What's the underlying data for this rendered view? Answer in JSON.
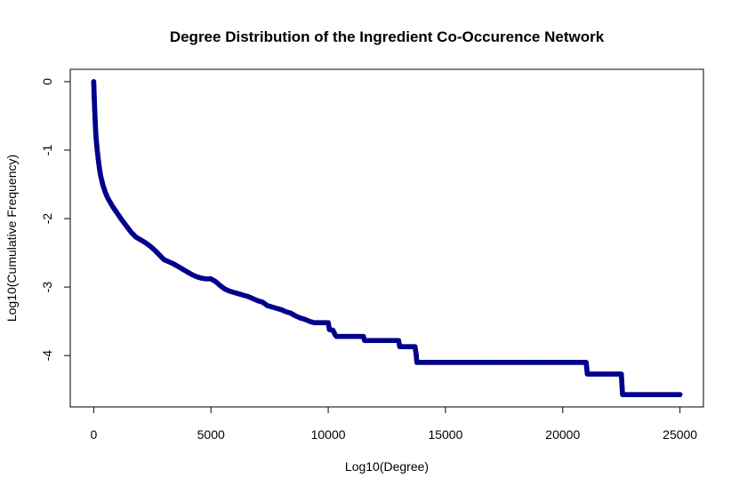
{
  "chart_data": {
    "type": "scatter",
    "title": "Degree Distribution of the Ingredient Co-Occurence Network",
    "xlabel": "Log10(Degree)",
    "ylabel": "Log10(Cumulative Frequency)",
    "xlim": [
      -1000,
      26000
    ],
    "ylim": [
      -4.75,
      0.18
    ],
    "xticks": [
      0,
      5000,
      10000,
      15000,
      20000,
      25000
    ],
    "yticks": [
      0,
      -1,
      -2,
      -3,
      -4
    ],
    "xtick_labels": [
      "0",
      "5000",
      "10000",
      "15000",
      "20000",
      "25000"
    ],
    "ytick_labels": [
      "0",
      "-1",
      "-2",
      "-3",
      "-4"
    ],
    "grid": false,
    "legend": "none",
    "point_color": "#00008B",
    "series": [
      {
        "x": [
          0,
          20,
          40,
          60,
          80,
          100,
          150,
          200,
          250,
          300,
          400,
          500,
          600,
          700,
          800,
          1000,
          1200,
          1400,
          1600,
          1800,
          2000,
          2200,
          2400,
          2600,
          2800,
          3000,
          3200,
          3400,
          3600,
          3800,
          4000,
          4200,
          4400,
          4600,
          4800,
          5000,
          5200,
          5400,
          5600,
          5800,
          6000,
          6200,
          6400,
          6600,
          6800,
          7000,
          7200,
          7400,
          7600,
          7800,
          8000,
          8200,
          8400,
          8600,
          8800,
          9000,
          9200,
          9400,
          9600,
          9800,
          10000,
          10050,
          10200,
          10300,
          10350,
          10500,
          10700,
          11000,
          11300,
          11500,
          11550,
          11800,
          12200,
          12600,
          13000,
          13050,
          13300,
          13500,
          13700,
          13750,
          13780,
          14000,
          14500,
          15000,
          15500,
          16000,
          16500,
          17000,
          17500,
          18000,
          18500,
          19000,
          19500,
          20000,
          20500,
          21000,
          21050,
          21300,
          21600,
          21900,
          22200,
          22500,
          22550,
          22800,
          23200,
          23600,
          24000,
          24400,
          24800,
          25000
        ],
        "y": [
          0,
          -0.2,
          -0.4,
          -0.55,
          -0.7,
          -0.82,
          -1.0,
          -1.15,
          -1.28,
          -1.38,
          -1.52,
          -1.62,
          -1.7,
          -1.76,
          -1.82,
          -1.92,
          -2.02,
          -2.11,
          -2.2,
          -2.27,
          -2.31,
          -2.35,
          -2.4,
          -2.46,
          -2.53,
          -2.6,
          -2.63,
          -2.66,
          -2.7,
          -2.74,
          -2.78,
          -2.82,
          -2.85,
          -2.87,
          -2.88,
          -2.88,
          -2.92,
          -2.98,
          -3.03,
          -3.06,
          -3.08,
          -3.1,
          -3.12,
          -3.14,
          -3.17,
          -3.2,
          -3.22,
          -3.27,
          -3.29,
          -3.31,
          -3.33,
          -3.36,
          -3.38,
          -3.42,
          -3.45,
          -3.47,
          -3.5,
          -3.52,
          -3.52,
          -3.52,
          -3.52,
          -3.62,
          -3.63,
          -3.7,
          -3.72,
          -3.72,
          -3.72,
          -3.72,
          -3.72,
          -3.72,
          -3.78,
          -3.78,
          -3.78,
          -3.78,
          -3.78,
          -3.87,
          -3.87,
          -3.87,
          -3.87,
          -3.98,
          -4.1,
          -4.1,
          -4.1,
          -4.1,
          -4.1,
          -4.1,
          -4.1,
          -4.1,
          -4.1,
          -4.1,
          -4.1,
          -4.1,
          -4.1,
          -4.1,
          -4.1,
          -4.1,
          -4.27,
          -4.27,
          -4.27,
          -4.27,
          -4.27,
          -4.27,
          -4.57,
          -4.57,
          -4.57,
          -4.57,
          -4.57,
          -4.57,
          -4.57,
          -4.57
        ]
      }
    ]
  }
}
